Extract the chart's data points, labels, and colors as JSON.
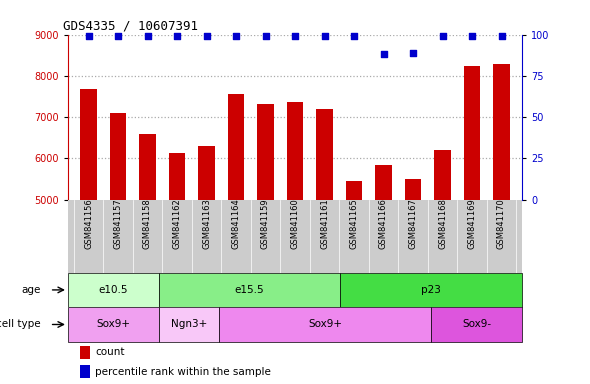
{
  "title": "GDS4335 / 10607391",
  "samples": [
    "GSM841156",
    "GSM841157",
    "GSM841158",
    "GSM841162",
    "GSM841163",
    "GSM841164",
    "GSM841159",
    "GSM841160",
    "GSM841161",
    "GSM841165",
    "GSM841166",
    "GSM841167",
    "GSM841168",
    "GSM841169",
    "GSM841170"
  ],
  "counts": [
    7680,
    7100,
    6580,
    6120,
    6310,
    7570,
    7310,
    7360,
    7200,
    5450,
    5840,
    5510,
    6200,
    8250,
    8280
  ],
  "percentile_ranks": [
    99,
    99,
    99,
    99,
    99,
    99,
    99,
    99,
    99,
    99,
    88,
    89,
    99,
    99,
    99
  ],
  "ylim_left": [
    5000,
    9000
  ],
  "ylim_right": [
    0,
    100
  ],
  "yticks_left": [
    5000,
    6000,
    7000,
    8000,
    9000
  ],
  "yticks_right": [
    0,
    25,
    50,
    75,
    100
  ],
  "bar_color": "#cc0000",
  "dot_color": "#0000cc",
  "grid_dotted_color": "#aaaaaa",
  "age_groups": [
    {
      "label": "e10.5",
      "start": 0,
      "end": 3,
      "color": "#ccffcc"
    },
    {
      "label": "e15.5",
      "start": 3,
      "end": 9,
      "color": "#88ee88"
    },
    {
      "label": "p23",
      "start": 9,
      "end": 15,
      "color": "#44dd44"
    }
  ],
  "cell_groups": [
    {
      "label": "Sox9+",
      "start": 0,
      "end": 3,
      "color": "#f0a0f0"
    },
    {
      "label": "Ngn3+",
      "start": 3,
      "end": 5,
      "color": "#f8c8f8"
    },
    {
      "label": "Sox9+",
      "start": 5,
      "end": 12,
      "color": "#ee88ee"
    },
    {
      "label": "Sox9-",
      "start": 12,
      "end": 15,
      "color": "#dd55dd"
    }
  ],
  "legend_count_color": "#cc0000",
  "legend_pct_color": "#0000cc",
  "xtick_bg_color": "#cccccc",
  "bg_color": "#ffffff",
  "label_arrow_color": "#555555"
}
